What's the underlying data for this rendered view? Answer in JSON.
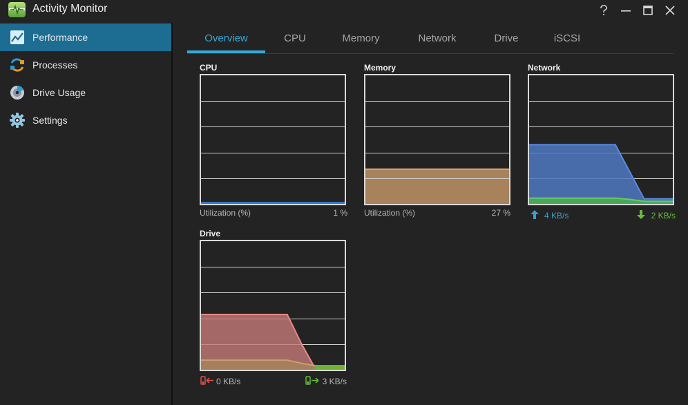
{
  "window": {
    "title": "Activity Monitor",
    "controls": {
      "help": "help",
      "minimize": "minimize",
      "maximize": "maximize",
      "close": "close"
    }
  },
  "sidebar": {
    "items": [
      {
        "label": "Performance",
        "icon": "performance-chart-icon",
        "active": true
      },
      {
        "label": "Processes",
        "icon": "processes-icon",
        "active": false
      },
      {
        "label": "Drive Usage",
        "icon": "drive-usage-icon",
        "active": false
      },
      {
        "label": "Settings",
        "icon": "gear-icon",
        "active": false
      }
    ]
  },
  "tabs": [
    "Overview",
    "CPU",
    "Memory",
    "Network",
    "Drive",
    "iSCSI"
  ],
  "active_tab": "Overview",
  "panels": {
    "cpu": {
      "title": "CPU",
      "label": "Utilization (%)",
      "value": "1 %"
    },
    "memory": {
      "title": "Memory",
      "label": "Utilization (%)",
      "value": "27 %"
    },
    "network": {
      "title": "Network",
      "upload": "4 KB/s",
      "download": "2 KB/s"
    },
    "drive": {
      "title": "Drive",
      "read": "0 KB/s",
      "write": "3 KB/s"
    }
  },
  "colors": {
    "accent": "#39a7d6",
    "sidebar_active": "#1d6d93",
    "cpu_line": "#3b7fd6",
    "memory_fill": "#a7825b",
    "network_send": "#4f78c2",
    "network_recv": "#4caf50",
    "drive_read": "#c47a78",
    "drive_write": "#a7825b"
  },
  "chart_data": [
    {
      "type": "area",
      "title": "CPU",
      "ylim": [
        0,
        100
      ],
      "series": [
        {
          "name": "Utilization (%)",
          "values": [
            1,
            1,
            1,
            1,
            1,
            1,
            1,
            1,
            1,
            1,
            1
          ]
        }
      ]
    },
    {
      "type": "area",
      "title": "Memory",
      "ylim": [
        0,
        100
      ],
      "series": [
        {
          "name": "Utilization (%)",
          "values": [
            27,
            27,
            27,
            27,
            27,
            27,
            27,
            27,
            27,
            27,
            27
          ]
        }
      ]
    },
    {
      "type": "area",
      "title": "Network",
      "ylim": [
        0,
        10
      ],
      "series": [
        {
          "name": "Upload",
          "values": [
            4.6,
            4.6,
            4.6,
            4.6,
            4.6,
            4.6,
            4.6,
            2.5,
            0.4,
            0.4,
            0.4
          ]
        },
        {
          "name": "Download",
          "values": [
            0.45,
            0.45,
            0.45,
            0.45,
            0.45,
            0.45,
            0.45,
            0.35,
            0.2,
            0.2,
            0.2
          ]
        }
      ]
    },
    {
      "type": "area",
      "title": "Drive",
      "ylim": [
        0,
        10
      ],
      "series": [
        {
          "name": "Read",
          "values": [
            4.3,
            4.3,
            4.3,
            4.3,
            4.3,
            4.3,
            4.3,
            2.0,
            0.0,
            0.0,
            0.0
          ]
        },
        {
          "name": "Write",
          "values": [
            0.75,
            0.75,
            0.75,
            0.75,
            0.75,
            0.75,
            0.75,
            0.5,
            0.3,
            0.3,
            0.3
          ]
        }
      ]
    }
  ]
}
